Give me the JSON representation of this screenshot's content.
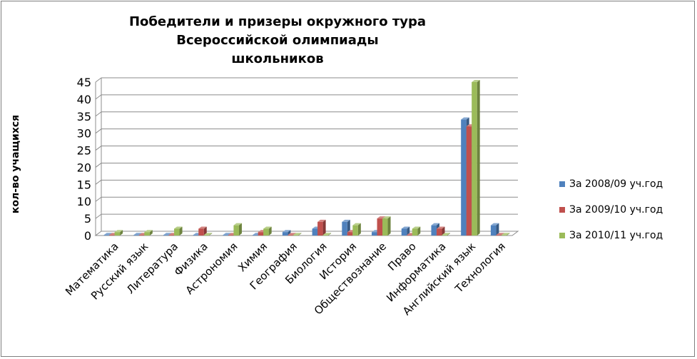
{
  "chart_data": {
    "type": "bar",
    "title": "Победители и призеры окружного тура Всероссийской олимпиады школьников",
    "title_lines": [
      "Победители и призеры окружного тура Всероссийской олимпиады",
      "школьников"
    ],
    "ylabel": "кол-во учащихся",
    "xlabel": "",
    "ylim": [
      0,
      45
    ],
    "yticks": [
      0,
      5,
      10,
      15,
      20,
      25,
      30,
      35,
      40,
      45
    ],
    "grid": true,
    "legend_position": "right",
    "categories": [
      "Математика",
      "Русский язык",
      "Литература",
      "Физика",
      "Астрономия",
      "Химия",
      "География",
      "Биология",
      "История",
      "Обществознание",
      "Право",
      "Информатика",
      "Английский язык",
      "Технология"
    ],
    "series": [
      {
        "name": "За 2008/09 уч.год",
        "color": "#4f81bd",
        "values": [
          0,
          0,
          0,
          0,
          0,
          0,
          1,
          2,
          4,
          1,
          2,
          3,
          34,
          3
        ]
      },
      {
        "name": "За 2009/10 уч.год",
        "color": "#c0504d",
        "values": [
          0,
          0,
          0,
          2,
          0,
          1,
          0,
          4,
          1,
          5,
          0,
          2,
          32,
          0
        ]
      },
      {
        "name": "За 2010/11 уч.год",
        "color": "#9bbb59",
        "values": [
          1,
          1,
          2,
          0,
          3,
          2,
          0,
          0,
          3,
          5,
          2,
          0,
          45,
          0
        ]
      }
    ]
  }
}
